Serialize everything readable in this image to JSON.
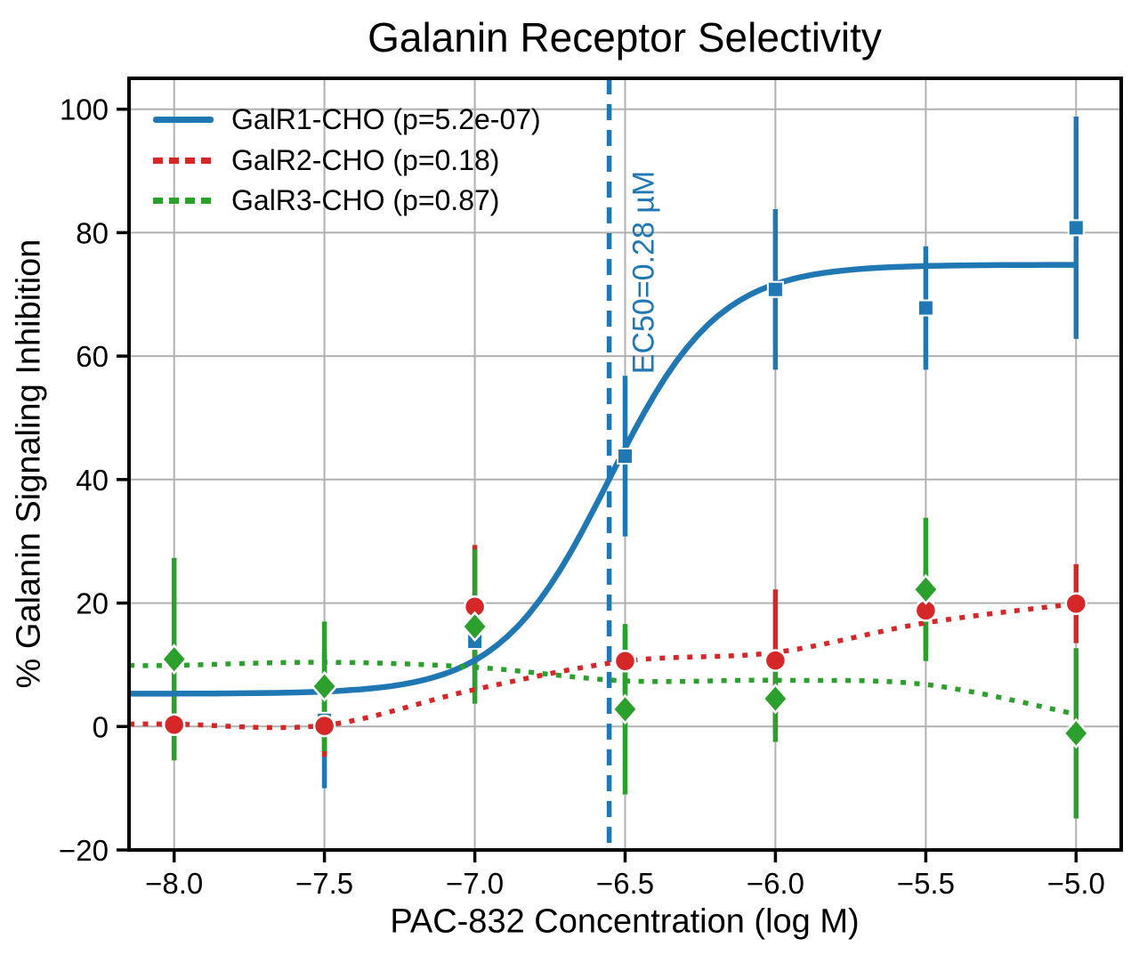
{
  "chart_data": {
    "type": "line",
    "title": "Galanin Receptor Selectivity",
    "xlabel": "PAC-832 Concentration (log M)",
    "ylabel": "% Galanin Signaling Inhibition",
    "xlim": [
      -8.15,
      -4.85
    ],
    "ylim": [
      -20,
      105
    ],
    "xticks": [
      -8.0,
      -7.5,
      -7.0,
      -6.5,
      -6.0,
      -5.5,
      -5.0
    ],
    "xtick_labels": [
      "−8.0",
      "−7.5",
      "−7.0",
      "−6.5",
      "−6.0",
      "−5.5",
      "−5.0"
    ],
    "yticks": [
      -20,
      0,
      20,
      40,
      60,
      80,
      100
    ],
    "ytick_labels": [
      "−20",
      "0",
      "20",
      "40",
      "60",
      "80",
      "100"
    ],
    "grid": true,
    "grid_color": "#b0b0b0",
    "axis_color": "#000000",
    "legend_position": "upper-left",
    "x": [
      -8.0,
      -7.5,
      -7.0,
      -6.5,
      -6.0,
      -5.5,
      -5.0
    ],
    "series": [
      {
        "name": "GalR1-CHO (p=5.2e-07)",
        "color": "#1f77b4",
        "marker": "square",
        "linestyle": "solid",
        "values": [
          0.4,
          1.0,
          13.8,
          43.8,
          70.8,
          67.8,
          80.8
        ],
        "yerr": [
          5.0,
          11.0,
          8.0,
          13.0,
          13.0,
          10.0,
          18.0
        ],
        "fit": {
          "type": "logistic4",
          "bottom": 5.3,
          "top": 74.8,
          "ec50_log": -6.553,
          "hill": 2.4
        }
      },
      {
        "name": "GalR2-CHO (p=0.18)",
        "color": "#d62728",
        "marker": "circle",
        "linestyle": "dotted",
        "values": [
          0.3,
          0.1,
          19.4,
          10.6,
          10.7,
          18.8,
          19.9
        ],
        "yerr": [
          5.5,
          5.0,
          10.0,
          5.0,
          11.5,
          6.5,
          6.4
        ],
        "trend": [
          0.4,
          0.2,
          6.0,
          10.6,
          12.0,
          16.8,
          19.9
        ]
      },
      {
        "name": "GalR3-CHO (p=0.87)",
        "color": "#2ca02c",
        "marker": "diamond",
        "linestyle": "dotted",
        "values": [
          10.9,
          6.5,
          16.2,
          2.8,
          4.5,
          22.2,
          -1.1
        ],
        "yerr": [
          16.4,
          10.5,
          12.5,
          13.8,
          7.0,
          11.6,
          13.8
        ],
        "trend": [
          9.9,
          10.4,
          9.6,
          7.4,
          7.5,
          6.8,
          2.0
        ]
      }
    ],
    "annotation": {
      "label": "EC50=0.28 µM",
      "x_log": -6.553,
      "color": "#1f77b4",
      "dashed_line": true
    }
  }
}
